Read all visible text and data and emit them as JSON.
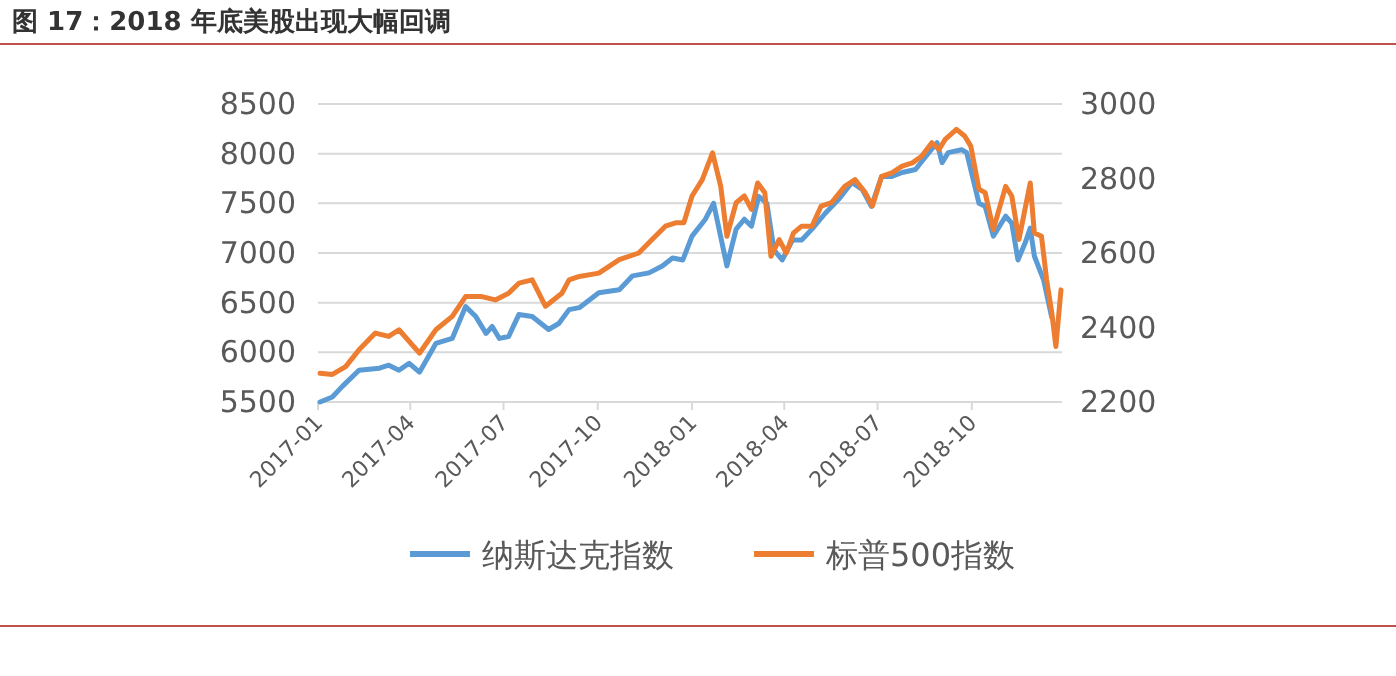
{
  "chart_data": {
    "type": "line",
    "title": "图 17：2018 年底美股出现大幅回调",
    "xlim": [
      "2017-01-01",
      "2018-12-28"
    ],
    "xticks": [
      {
        "value": "2017-01-01",
        "label": "2017-01"
      },
      {
        "value": "2017-04-01",
        "label": "2017-04"
      },
      {
        "value": "2017-07-01",
        "label": "2017-07"
      },
      {
        "value": "2017-10-01",
        "label": "2017-10"
      },
      {
        "value": "2018-01-01",
        "label": "2018-01"
      },
      {
        "value": "2018-04-01",
        "label": "2018-04"
      },
      {
        "value": "2018-07-01",
        "label": "2018-07"
      },
      {
        "value": "2018-10-01",
        "label": "2018-10"
      }
    ],
    "ylim": [
      5500,
      8500
    ],
    "yticks": [
      5500,
      6000,
      6500,
      7000,
      7500,
      8000,
      8500
    ],
    "y2lim": [
      2200,
      3000
    ],
    "y2ticks": [
      2200,
      2400,
      2600,
      2800,
      3000
    ],
    "grid": "y",
    "legend": "bottom",
    "series": [
      {
        "name": "纳斯达克指数",
        "color": "#5b9bd5",
        "x": [
          "2017-01-03",
          "2017-01-15",
          "2017-01-25",
          "2017-02-10",
          "2017-03-02",
          "2017-03-11",
          "2017-03-21",
          "2017-03-31",
          "2017-04-10",
          "2017-04-26",
          "2017-05-12",
          "2017-05-25",
          "2017-06-04",
          "2017-06-14",
          "2017-06-20",
          "2017-06-27",
          "2017-07-06",
          "2017-07-16",
          "2017-07-29",
          "2017-08-14",
          "2017-08-24",
          "2017-09-03",
          "2017-09-13",
          "2017-10-02",
          "2017-10-22",
          "2017-11-04",
          "2017-11-20",
          "2017-12-03",
          "2017-12-13",
          "2017-12-23",
          "2018-01-01",
          "2018-01-14",
          "2018-01-22",
          "2018-02-04",
          "2018-02-13",
          "2018-02-21",
          "2018-02-28",
          "2018-03-07",
          "2018-03-15",
          "2018-03-22",
          "2018-03-30",
          "2018-04-09",
          "2018-04-18",
          "2018-04-28",
          "2018-05-11",
          "2018-05-24",
          "2018-06-06",
          "2018-06-16",
          "2018-06-25",
          "2018-07-05",
          "2018-07-15",
          "2018-07-25",
          "2018-08-07",
          "2018-08-20",
          "2018-08-28",
          "2018-09-02",
          "2018-09-08",
          "2018-09-21",
          "2018-09-26",
          "2018-10-08",
          "2018-10-14",
          "2018-10-22",
          "2018-11-03",
          "2018-11-09",
          "2018-11-15",
          "2018-11-22",
          "2018-11-27",
          "2018-12-01",
          "2018-12-10",
          "2018-12-18"
        ],
        "values": [
          5500,
          5550,
          5660,
          5820,
          5840,
          5870,
          5820,
          5890,
          5800,
          6090,
          6140,
          6460,
          6360,
          6190,
          6260,
          6140,
          6160,
          6380,
          6360,
          6230,
          6290,
          6430,
          6450,
          6600,
          6630,
          6770,
          6800,
          6870,
          6950,
          6930,
          7170,
          7340,
          7500,
          6870,
          7240,
          7340,
          7270,
          7570,
          7500,
          7030,
          6930,
          7130,
          7130,
          7240,
          7400,
          7540,
          7710,
          7640,
          7470,
          7770,
          7770,
          7810,
          7840,
          8010,
          8110,
          7910,
          8010,
          8040,
          8010,
          7500,
          7470,
          7170,
          7370,
          7300,
          6930,
          7100,
          7250,
          6970,
          6730,
          6350
        ]
      },
      {
        "name": "标普500指数",
        "color": "#ed7d31",
        "axis": "y2",
        "x": [
          "2017-01-03",
          "2017-01-15",
          "2017-01-28",
          "2017-02-10",
          "2017-02-26",
          "2017-03-11",
          "2017-03-21",
          "2017-04-10",
          "2017-04-26",
          "2017-05-12",
          "2017-05-25",
          "2017-06-10",
          "2017-06-23",
          "2017-07-06",
          "2017-07-16",
          "2017-07-29",
          "2017-08-11",
          "2017-08-27",
          "2017-09-03",
          "2017-09-13",
          "2017-10-02",
          "2017-10-22",
          "2017-11-10",
          "2017-11-23",
          "2017-12-06",
          "2017-12-16",
          "2017-12-24",
          "2018-01-01",
          "2018-01-11",
          "2018-01-21",
          "2018-01-29",
          "2018-02-04",
          "2018-02-13",
          "2018-02-21",
          "2018-02-28",
          "2018-03-06",
          "2018-03-13",
          "2018-03-19",
          "2018-03-27",
          "2018-04-03",
          "2018-04-10",
          "2018-04-18",
          "2018-04-28",
          "2018-05-07",
          "2018-05-17",
          "2018-05-30",
          "2018-06-09",
          "2018-06-19",
          "2018-06-26",
          "2018-07-05",
          "2018-07-15",
          "2018-07-25",
          "2018-08-04",
          "2018-08-13",
          "2018-08-23",
          "2018-08-30",
          "2018-09-05",
          "2018-09-16",
          "2018-09-24",
          "2018-09-30",
          "2018-10-08",
          "2018-10-14",
          "2018-10-22",
          "2018-11-03",
          "2018-11-09",
          "2018-11-16",
          "2018-11-27",
          "2018-12-01",
          "2018-12-08",
          "2018-12-13",
          "2018-12-18",
          "2018-12-22",
          "2018-12-27"
        ],
        "values": [
          2277,
          2274,
          2295,
          2340,
          2385,
          2376,
          2394,
          2331,
          2394,
          2430,
          2483,
          2483,
          2474,
          2492,
          2519,
          2528,
          2457,
          2492,
          2528,
          2537,
          2546,
          2582,
          2600,
          2636,
          2672,
          2681,
          2681,
          2753,
          2797,
          2869,
          2779,
          2645,
          2735,
          2753,
          2717,
          2788,
          2762,
          2591,
          2636,
          2600,
          2654,
          2672,
          2672,
          2726,
          2735,
          2779,
          2797,
          2762,
          2726,
          2806,
          2815,
          2833,
          2842,
          2860,
          2896,
          2878,
          2905,
          2932,
          2914,
          2887,
          2771,
          2762,
          2663,
          2779,
          2753,
          2636,
          2788,
          2654,
          2645,
          2528,
          2440,
          2349,
          2501
        ]
      }
    ]
  }
}
